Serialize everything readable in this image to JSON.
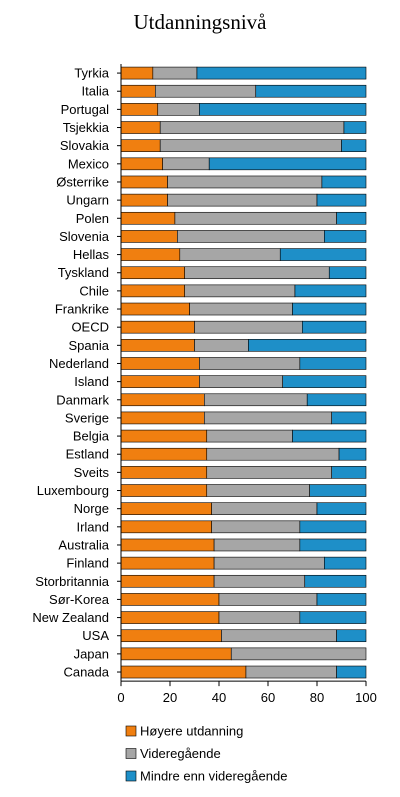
{
  "chart_data": {
    "type": "bar",
    "orientation": "horizontal",
    "stacked": true,
    "title": "Utdanningsnivå",
    "xlim": [
      0,
      100
    ],
    "xticks": [
      "0",
      "20",
      "40",
      "60",
      "80",
      "100"
    ],
    "grid": false,
    "legend_position": "bottom",
    "categories": [
      "Tyrkia",
      "Italia",
      "Portugal",
      "Tsjekkia",
      "Slovakia",
      "Mexico",
      "Østerrike",
      "Ungarn",
      "Polen",
      "Slovenia",
      "Hellas",
      "Tyskland",
      "Chile",
      "Frankrike",
      "OECD",
      "Spania",
      "Nederland",
      "Island",
      "Danmark",
      "Sverige",
      "Belgia",
      "Estland",
      "Sveits",
      "Luxembourg",
      "Norge",
      "Irland",
      "Australia",
      "Finland",
      "Storbritannia",
      "Sør-Korea",
      "New Zealand",
      "USA",
      "Japan",
      "Canada"
    ],
    "series": [
      {
        "name": "Høyere utdanning",
        "color": "#f07f10",
        "values": [
          13,
          14,
          15,
          16,
          16,
          17,
          19,
          19,
          22,
          23,
          24,
          26,
          26,
          28,
          30,
          30,
          32,
          32,
          34,
          34,
          35,
          35,
          35,
          35,
          37,
          37,
          38,
          38,
          38,
          40,
          40,
          41,
          45,
          51
        ]
      },
      {
        "name": "Videregående",
        "color": "#a6a6a6",
        "values": [
          18,
          41,
          17,
          75,
          74,
          19,
          63,
          61,
          66,
          60,
          41,
          59,
          45,
          42,
          44,
          22,
          41,
          34,
          42,
          52,
          35,
          54,
          51,
          42,
          43,
          36,
          35,
          45,
          37,
          40,
          33,
          47,
          55,
          37
        ]
      },
      {
        "name": "Mindre enn videregående",
        "color": "#1e8fc8",
        "values": [
          69,
          45,
          68,
          9,
          10,
          64,
          18,
          20,
          12,
          17,
          35,
          15,
          29,
          30,
          26,
          48,
          27,
          34,
          24,
          14,
          30,
          11,
          14,
          23,
          20,
          27,
          27,
          17,
          25,
          20,
          27,
          12,
          0,
          12
        ]
      }
    ]
  }
}
